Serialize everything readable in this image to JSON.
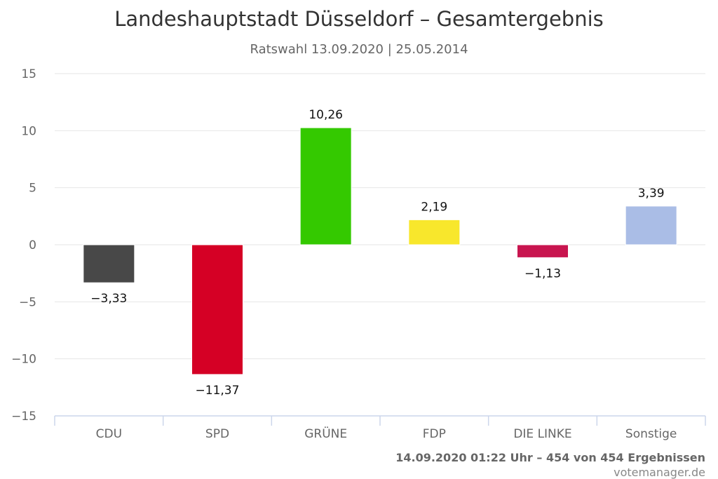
{
  "chart_data": {
    "type": "bar",
    "title": "Landeshauptstadt Düsseldorf – Gesamtergebnis",
    "subtitle": "Ratswahl 13.09.2020 | 25.05.2014",
    "categories": [
      "CDU",
      "SPD",
      "GRÜNE",
      "FDP",
      "DIE LINKE",
      "Sonstige"
    ],
    "values": [
      -3.33,
      -11.37,
      10.26,
      2.19,
      -1.13,
      3.39
    ],
    "value_labels": [
      "−3,33",
      "−11,37",
      "10,26",
      "2,19",
      "−1,13",
      "3,39"
    ],
    "colors": [
      "#484848",
      "#d50025",
      "#34c900",
      "#f8e72c",
      "#c8154f",
      "#aabde6"
    ],
    "ylim": [
      -15,
      15
    ],
    "yticks": [
      15,
      10,
      5,
      0,
      -5,
      -10,
      -15
    ],
    "ytick_labels": [
      "15",
      "10",
      "5",
      "0",
      "−5",
      "−10",
      "−15"
    ],
    "grid": true,
    "xlabel": "",
    "ylabel": ""
  },
  "footer": {
    "result_status": "14.09.2020 01:22 Uhr – 454 von 454 Ergebnissen",
    "credit": "votemanager.de"
  }
}
